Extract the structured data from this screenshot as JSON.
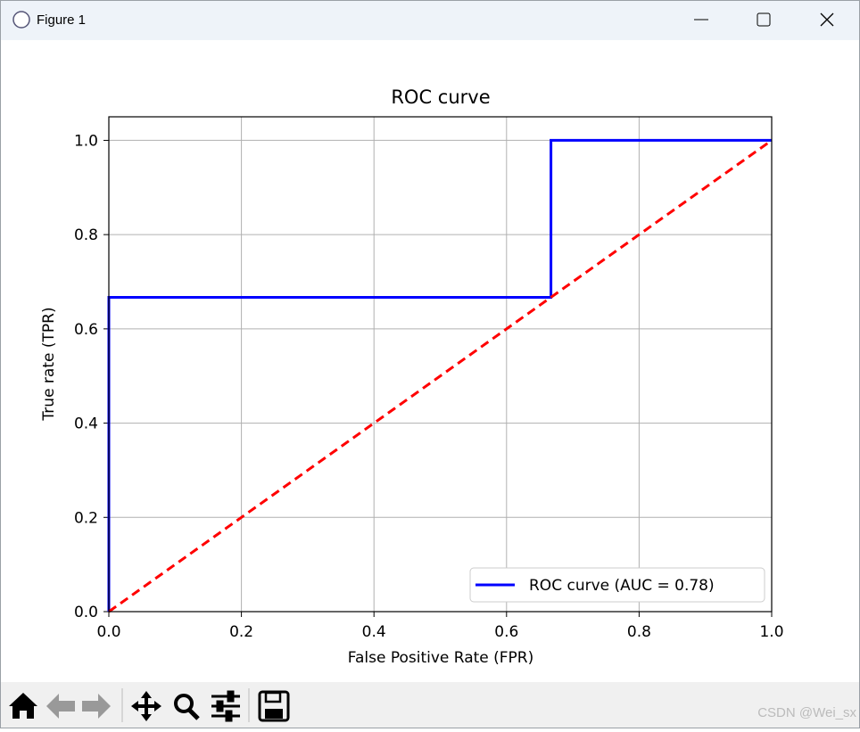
{
  "window": {
    "title": "Figure 1"
  },
  "watermark": "CSDN @Wei_sx",
  "chart_data": {
    "type": "line",
    "title": "ROC curve",
    "xlabel": "False Positive Rate (FPR)",
    "ylabel": "True rate (TPR)",
    "xlim": [
      0,
      1
    ],
    "ylim": [
      0,
      1.05
    ],
    "xticks": [
      {
        "value": 0,
        "label": "0.0"
      },
      0.2,
      0.4,
      0.6,
      0.8,
      {
        "value": 1,
        "label": "1.0"
      }
    ],
    "yticks": [
      {
        "value": 0,
        "label": "0.0"
      },
      0.2,
      0.4,
      0.6,
      0.8,
      {
        "value": 1,
        "label": "1.0"
      }
    ],
    "grid": true,
    "legend": "lower right",
    "series": [
      {
        "name": "ROC curve (AUC = 0.78)",
        "color": "#0000ff",
        "dash": "solid",
        "x": [
          0,
          0,
          0.667,
          0.667,
          1
        ],
        "values": [
          0,
          0.667,
          0.667,
          1,
          1
        ]
      },
      {
        "color": "#ff0000",
        "dash": "dashed",
        "x": [
          0,
          1
        ],
        "values": [
          0,
          1
        ]
      }
    ]
  }
}
